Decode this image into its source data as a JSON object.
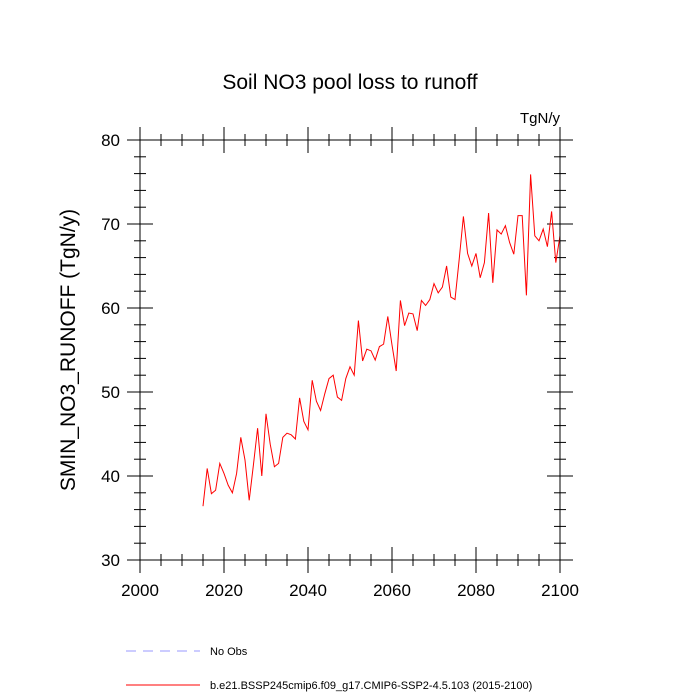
{
  "chart_data": {
    "type": "line",
    "title": "Soil NO3 pool loss to runoff",
    "units": "TgN/y",
    "xlabel": "",
    "ylabel": "SMIN_NO3_RUNOFF  (TgN/y)",
    "xlim": [
      2000,
      2100
    ],
    "ylim": [
      30,
      80
    ],
    "xticks": [
      2000,
      2020,
      2040,
      2060,
      2080,
      2100
    ],
    "yticks": [
      30,
      40,
      50,
      60,
      70,
      80
    ],
    "grid": false,
    "legend_position": "bottom",
    "colors": {
      "series": "#ff0000",
      "obs": "#9999ff"
    },
    "legend": [
      {
        "label": "No Obs",
        "style": "dashed",
        "color": "#9999ff"
      },
      {
        "label": "b.e21.BSSP245cmip6.f09_g17.CMIP6-SSP2-4.5.103 (2015-2100)",
        "style": "solid",
        "color": "#ff0000"
      }
    ],
    "series": [
      {
        "name": "b.e21.BSSP245cmip6.f09_g17.CMIP6-SSP2-4.5.103 (2015-2100)",
        "x": [
          2015,
          2016,
          2017,
          2018,
          2019,
          2020,
          2021,
          2022,
          2023,
          2024,
          2025,
          2026,
          2027,
          2028,
          2029,
          2030,
          2031,
          2032,
          2033,
          2034,
          2035,
          2036,
          2037,
          2038,
          2039,
          2040,
          2041,
          2042,
          2043,
          2044,
          2045,
          2046,
          2047,
          2048,
          2049,
          2050,
          2051,
          2052,
          2053,
          2054,
          2055,
          2056,
          2057,
          2058,
          2059,
          2060,
          2061,
          2062,
          2063,
          2064,
          2065,
          2066,
          2067,
          2068,
          2069,
          2070,
          2071,
          2072,
          2073,
          2074,
          2075,
          2076,
          2077,
          2078,
          2079,
          2080,
          2081,
          2082,
          2083,
          2084,
          2085,
          2086,
          2087,
          2088,
          2089,
          2090,
          2091,
          2092,
          2093,
          2094,
          2095,
          2096,
          2097,
          2098,
          2099,
          2100
        ],
        "values": [
          36.4,
          40.9,
          37.9,
          38.3,
          41.5,
          40.3,
          38.9,
          38.0,
          40.3,
          44.6,
          41.9,
          37.1,
          41.3,
          45.7,
          40.0,
          47.4,
          43.8,
          41.1,
          41.5,
          44.6,
          45.1,
          44.9,
          44.4,
          49.3,
          46.5,
          45.5,
          51.4,
          48.9,
          47.8,
          49.8,
          51.6,
          52.0,
          49.4,
          49.0,
          51.6,
          53.0,
          52.0,
          58.5,
          53.7,
          55.1,
          54.9,
          53.8,
          55.4,
          55.7,
          59.0,
          55.6,
          52.5,
          60.9,
          57.9,
          59.4,
          59.3,
          57.3,
          60.9,
          60.3,
          61.0,
          62.9,
          61.8,
          62.5,
          65.0,
          61.3,
          61.0,
          65.8,
          70.9,
          66.5,
          65.0,
          66.5,
          63.6,
          65.4,
          71.3,
          63.0,
          69.3,
          68.8,
          69.8,
          67.8,
          66.4,
          71.0,
          71.0,
          61.5,
          75.9,
          68.6,
          68.0,
          69.4,
          67.3,
          71.5,
          65.4,
          68.6
        ]
      }
    ]
  }
}
